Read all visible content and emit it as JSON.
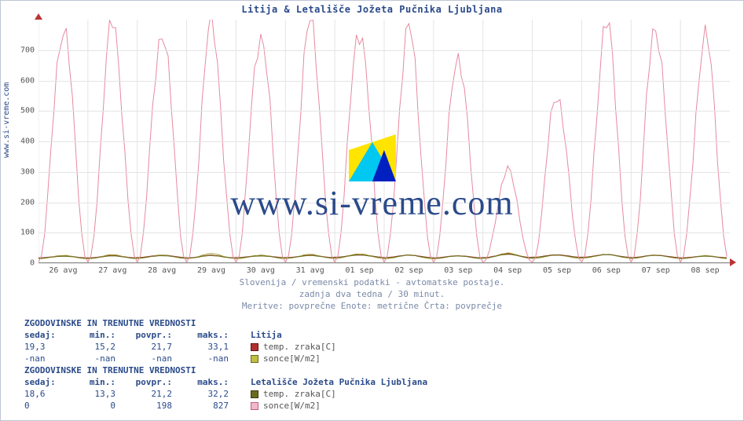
{
  "title": "Litija & Letališče Jožeta Pučnika Ljubljana",
  "ylabel": "www.si-vreme.com",
  "watermark_text": "www.si-vreme.com",
  "caption_lines": [
    "Slovenija / vremenski podatki - avtomatske postaje.",
    "zadnja dva tedna / 30 minut.",
    "Meritve: povprečne  Enote: metrične  Črta: povprečje"
  ],
  "chart": {
    "type": "line",
    "background_color": "#ffffff",
    "grid_color": "#e4e4e4",
    "axis_color": "#888888",
    "arrow_color": "#bb3333",
    "ylim": [
      0,
      800
    ],
    "yticks": [
      0,
      100,
      200,
      300,
      400,
      500,
      600,
      700
    ],
    "xticks": [
      "26 avg",
      "27 avg",
      "28 avg",
      "29 avg",
      "30 avg",
      "31 avg",
      "01 sep",
      "02 sep",
      "03 sep",
      "04 sep",
      "05 sep",
      "06 sep",
      "07 sep",
      "08 sep"
    ],
    "series": [
      {
        "id": "litija_temp",
        "label": "temp. zraka[C]",
        "color": "#b03030",
        "line_width": 1,
        "peaks": [
          21,
          22,
          24,
          23,
          22,
          23,
          25,
          24,
          22,
          28,
          25,
          26,
          24,
          21
        ],
        "troughs": [
          15,
          15,
          16,
          15,
          16,
          16,
          17,
          16,
          15,
          16,
          17,
          17,
          16,
          15
        ]
      },
      {
        "id": "litija_sonce",
        "label": "sonce[W/m2]",
        "color": "#9a9a30",
        "line_width": 1,
        "peaks": [
          23,
          25,
          24,
          28,
          24,
          26,
          28,
          24,
          22,
          30,
          24,
          26,
          24,
          22
        ],
        "troughs": [
          12,
          12,
          13,
          13,
          12,
          13,
          13,
          12,
          12,
          13,
          13,
          14,
          13,
          12
        ]
      },
      {
        "id": "brnik_temp",
        "label": "temp. zraka[C]",
        "color": "#6a6a20",
        "line_width": 1,
        "peaks": [
          20,
          21,
          22,
          22,
          21,
          22,
          24,
          23,
          21,
          26,
          24,
          25,
          23,
          20
        ],
        "troughs": [
          14,
          14,
          15,
          14,
          15,
          15,
          16,
          15,
          14,
          15,
          16,
          16,
          15,
          14
        ]
      },
      {
        "id": "brnik_sonce",
        "label": "sonce[W/m2]",
        "color": "#e68aa0",
        "line_width": 1,
        "peaks": [
          780,
          780,
          770,
          775,
          760,
          780,
          780,
          760,
          690,
          300,
          560,
          780,
          780,
          740
        ],
        "troughs": [
          0,
          0,
          0,
          0,
          0,
          0,
          0,
          0,
          0,
          0,
          0,
          0,
          0,
          0
        ]
      }
    ]
  },
  "stats_header": "ZGODOVINSKE IN TRENUTNE VREDNOSTI",
  "stats_columns": [
    "sedaj:",
    "min.:",
    "povpr.:",
    "maks.:"
  ],
  "stations": [
    {
      "name": "Litija",
      "rows": [
        {
          "swatch_fill": "#b03030",
          "swatch_border": "#6a1010",
          "label": "temp. zraka[C]",
          "values": [
            "19,3",
            "15,2",
            "21,7",
            "33,1"
          ]
        },
        {
          "swatch_fill": "#c0c040",
          "swatch_border": "#6a6a20",
          "label": "sonce[W/m2]",
          "values": [
            "-nan",
            "-nan",
            "-nan",
            "-nan"
          ]
        }
      ]
    },
    {
      "name": "Letališče Jožeta Pučnika Ljubljana",
      "rows": [
        {
          "swatch_fill": "#6a6a20",
          "swatch_border": "#3a3a10",
          "label": "temp. zraka[C]",
          "values": [
            "18,6",
            "13,3",
            "21,2",
            "32,2"
          ]
        },
        {
          "swatch_fill": "#f0b8c8",
          "swatch_border": "#c06080",
          "label": "sonce[W/m2]",
          "values": [
            "0",
            "0",
            "198",
            "827"
          ]
        }
      ]
    }
  ],
  "logo": {
    "colors": [
      "#ffe400",
      "#00c8f0",
      "#0020c0"
    ]
  }
}
